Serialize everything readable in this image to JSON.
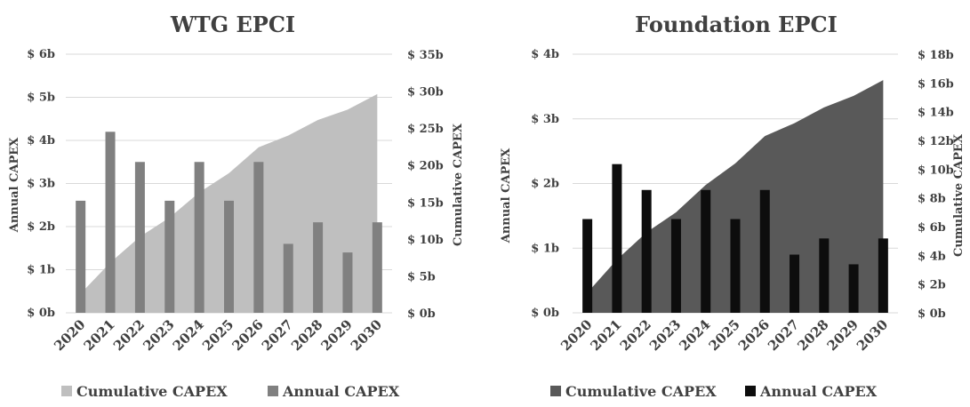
{
  "chart_data": [
    {
      "type": "bar+area",
      "title": "WTG EPCI",
      "categories": [
        "2020",
        "2021",
        "2022",
        "2023",
        "2024",
        "2025",
        "2026",
        "2027",
        "2028",
        "2029",
        "2030"
      ],
      "ylabel_left": "Annual CAPEX",
      "ylabel_right": "Cumulative CAPEX",
      "left_ticks": [
        "$ 0b",
        "$ 1b",
        "$ 2b",
        "$ 3b",
        "$ 4b",
        "$ 5b",
        "$ 6b"
      ],
      "left_ylim": [
        0,
        6
      ],
      "right_ticks": [
        "$ 0b",
        "$ 5b",
        "$ 10b",
        "$ 15b",
        "$ 20b",
        "$ 25b",
        "$ 30b",
        "$ 35b"
      ],
      "right_ylim": [
        0,
        35
      ],
      "grid": true,
      "legend_position": "bottom",
      "series": [
        {
          "name": "Cumulative CAPEX",
          "kind": "area",
          "axis": "right",
          "color": "#bfbfbf",
          "values": [
            2.6,
            6.8,
            10.3,
            12.9,
            16.3,
            18.9,
            22.4,
            24.0,
            26.1,
            27.5,
            29.6
          ]
        },
        {
          "name": "Annual CAPEX",
          "kind": "bar",
          "axis": "left",
          "color": "#808080",
          "values": [
            2.6,
            4.2,
            3.5,
            2.6,
            3.5,
            2.6,
            3.5,
            1.6,
            2.1,
            1.4,
            2.1
          ]
        }
      ]
    },
    {
      "type": "bar+area",
      "title": "Foundation EPCI",
      "categories": [
        "2020",
        "2021",
        "2022",
        "2023",
        "2024",
        "2025",
        "2026",
        "2027",
        "2028",
        "2029",
        "2030"
      ],
      "ylabel_left": "Annual CAPEX",
      "ylabel_right": "Cumulative CAPEX",
      "left_ticks": [
        "$ 0b",
        "$ 1b",
        "$ 2b",
        "$ 3b",
        "$ 4b"
      ],
      "left_ylim": [
        0,
        4
      ],
      "right_ticks": [
        "$ 0b",
        "$ 2b",
        "$ 4b",
        "$ 6b",
        "$ 8b",
        "$ 10b",
        "$ 12b",
        "$ 14b",
        "$ 16b",
        "$ 18b"
      ],
      "right_ylim": [
        0,
        18
      ],
      "grid": true,
      "legend_position": "bottom",
      "series": [
        {
          "name": "Cumulative CAPEX",
          "kind": "area",
          "axis": "right",
          "color": "#595959",
          "values": [
            1.4,
            3.7,
            5.6,
            7.0,
            8.9,
            10.4,
            12.3,
            13.2,
            14.3,
            15.1,
            16.2
          ]
        },
        {
          "name": "Annual CAPEX",
          "kind": "bar",
          "axis": "left",
          "color": "#0d0d0d",
          "values": [
            1.45,
            2.3,
            1.9,
            1.45,
            1.9,
            1.45,
            1.9,
            0.9,
            1.15,
            0.75,
            1.15
          ]
        }
      ]
    }
  ]
}
